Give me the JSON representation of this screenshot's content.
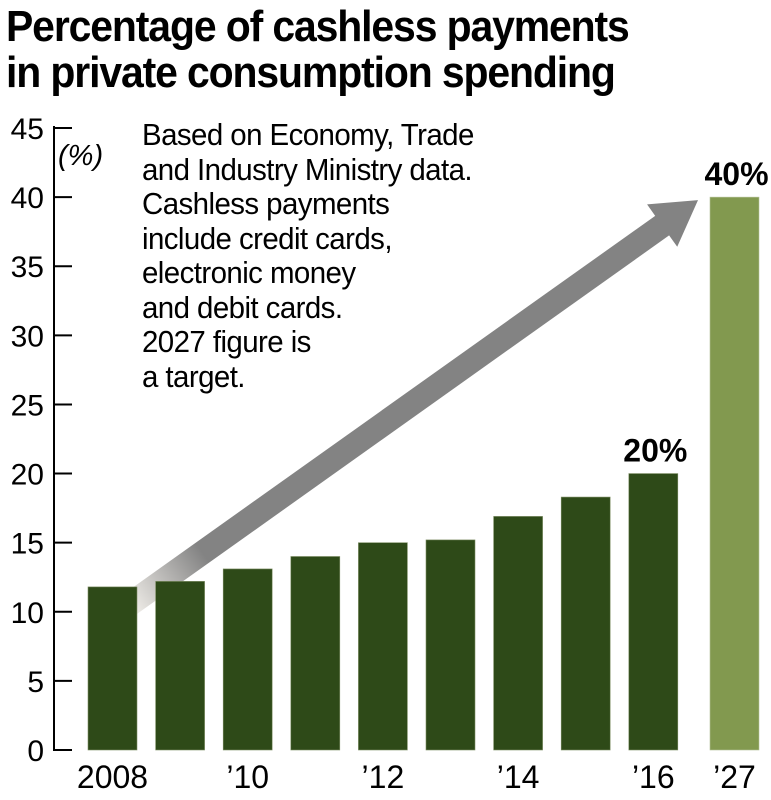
{
  "chart_data": {
    "type": "bar",
    "title": "Percentage of cashless payments in private consumption spending",
    "title_lines": [
      "Percentage of cashless payments",
      "in private consumption spending"
    ],
    "ylabel": "(%)",
    "xlabel": "",
    "ylim": [
      0,
      45
    ],
    "yticks": [
      0,
      5,
      10,
      15,
      20,
      25,
      30,
      35,
      40,
      45
    ],
    "categories": [
      "2008",
      "2009",
      "2010",
      "2011",
      "2012",
      "2013",
      "2014",
      "2015",
      "2016",
      "2027"
    ],
    "tick_labels": [
      "2008",
      "",
      "’10",
      "",
      "’12",
      "",
      "’14",
      "",
      "’16",
      "’27"
    ],
    "values": [
      11.8,
      12.2,
      13.1,
      14.0,
      15.0,
      15.2,
      16.9,
      18.3,
      20.0,
      40.0
    ],
    "target_category": "2027",
    "data_labels": [
      {
        "category": "2016",
        "text": "20%"
      },
      {
        "category": "2027",
        "text": "40%"
      }
    ],
    "annotation_lines": [
      "Based on Economy, Trade",
      "and Industry Ministry data.",
      "Cashless payments",
      "include credit cards,",
      "electronic money",
      "and debit cards.",
      "2027 figure is",
      "a target."
    ],
    "trend_arrow": {
      "from_category": "2008",
      "to_category": "2027",
      "meaning": "upward trend"
    },
    "grid": false,
    "legend": "none",
    "colors": {
      "actual_bar": "#2e4a18",
      "target_bar": "#82994f",
      "arrow": "#838383"
    }
  }
}
